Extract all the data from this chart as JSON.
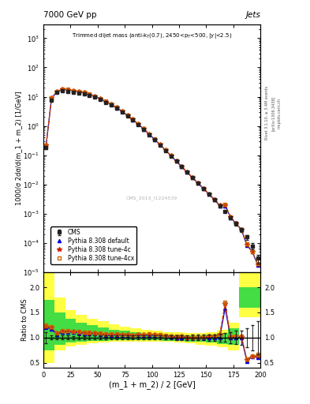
{
  "title_main": "7000 GeV pp",
  "title_right": "Jets",
  "plot_title_line1": "Trimmed dijet mass (anti-k_{T}(0.7), 2450<p_{T}<500, |y|<2.5)",
  "xlabel": "(m_1 + m_2) / 2 [GeV]",
  "ylabel_main": "1000/σ 2dσ/d(m_1 + m_2) [1/GeV]",
  "ylabel_ratio": "Ratio to CMS",
  "watermark": "CMS_2013_I1224539",
  "rivet_label": "Rivet 3.1.10, ≥ 3.4M events",
  "arxiv_label": "[arXiv:1306.3438]",
  "mcplots_label": "mcplots.cern.ch",
  "cms_x": [
    2.5,
    7.5,
    12.5,
    17.5,
    22.5,
    27.5,
    32.5,
    37.5,
    42.5,
    47.5,
    52.5,
    57.5,
    62.5,
    67.5,
    72.5,
    77.5,
    82.5,
    87.5,
    92.5,
    97.5,
    102.5,
    107.5,
    112.5,
    117.5,
    122.5,
    127.5,
    132.5,
    137.5,
    142.5,
    147.5,
    152.5,
    157.5,
    162.5,
    167.5,
    172.5,
    177.5,
    182.5,
    187.5,
    192.5,
    197.5
  ],
  "cms_y": [
    0.18,
    7.5,
    14.0,
    16.0,
    15.5,
    14.5,
    13.5,
    12.5,
    11.0,
    9.5,
    8.0,
    6.5,
    5.2,
    4.0,
    3.0,
    2.2,
    1.6,
    1.1,
    0.75,
    0.5,
    0.33,
    0.22,
    0.145,
    0.095,
    0.062,
    0.04,
    0.026,
    0.017,
    0.011,
    0.0072,
    0.0047,
    0.003,
    0.0019,
    0.0012,
    0.00075,
    0.00046,
    0.00028,
    0.00016,
    8e-05,
    3e-05
  ],
  "cms_yerr": [
    0.02,
    0.3,
    0.5,
    0.6,
    0.6,
    0.5,
    0.5,
    0.4,
    0.4,
    0.35,
    0.3,
    0.25,
    0.2,
    0.15,
    0.12,
    0.09,
    0.06,
    0.04,
    0.03,
    0.02,
    0.013,
    0.009,
    0.006,
    0.004,
    0.003,
    0.002,
    0.0013,
    0.0009,
    0.0006,
    0.0004,
    0.0003,
    0.0002,
    0.00015,
    0.0001,
    8e-05,
    6e-05,
    4e-05,
    3e-05,
    2e-05,
    1e-05
  ],
  "pythia_default_y": [
    0.215,
    8.8,
    14.8,
    17.8,
    17.2,
    16.0,
    14.8,
    13.5,
    11.8,
    10.2,
    8.5,
    6.8,
    5.4,
    4.2,
    3.15,
    2.3,
    1.65,
    1.15,
    0.78,
    0.52,
    0.345,
    0.228,
    0.149,
    0.096,
    0.062,
    0.04,
    0.026,
    0.017,
    0.011,
    0.0072,
    0.0047,
    0.003,
    0.0019,
    0.0019,
    0.00075,
    0.00046,
    0.00028,
    8.5e-05,
    5e-05,
    1.8e-05
  ],
  "pythia_tune4c_y": [
    0.22,
    9.0,
    15.2,
    18.0,
    17.5,
    16.2,
    15.0,
    13.7,
    12.0,
    10.3,
    8.6,
    6.9,
    5.5,
    4.25,
    3.18,
    2.32,
    1.67,
    1.16,
    0.79,
    0.53,
    0.35,
    0.23,
    0.15,
    0.097,
    0.063,
    0.041,
    0.026,
    0.017,
    0.011,
    0.0073,
    0.0048,
    0.0031,
    0.002,
    0.002,
    0.00076,
    0.00047,
    0.000285,
    9e-05,
    5e-05,
    1.9e-05
  ],
  "pythia_tune4cx_y": [
    0.225,
    9.1,
    15.3,
    18.1,
    17.6,
    16.3,
    15.1,
    13.8,
    12.1,
    10.4,
    8.7,
    7.0,
    5.55,
    4.28,
    3.2,
    2.34,
    1.68,
    1.17,
    0.795,
    0.535,
    0.352,
    0.232,
    0.151,
    0.098,
    0.0635,
    0.0412,
    0.0265,
    0.0172,
    0.0111,
    0.0073,
    0.0048,
    0.0031,
    0.002,
    0.00205,
    0.00077,
    0.000475,
    0.000288,
    9.2e-05,
    5.1e-05,
    2e-05
  ],
  "band_x_edges": [
    0,
    10,
    20,
    30,
    40,
    50,
    60,
    70,
    80,
    90,
    100,
    110,
    120,
    130,
    140,
    150,
    160,
    170,
    180,
    200
  ],
  "band_yellow_lo": [
    0.5,
    0.75,
    0.82,
    0.86,
    0.88,
    0.9,
    0.91,
    0.92,
    0.92,
    0.92,
    0.92,
    0.91,
    0.9,
    0.88,
    0.86,
    0.84,
    0.8,
    0.75,
    1.4,
    1.6
  ],
  "band_yellow_hi": [
    2.3,
    1.8,
    1.55,
    1.45,
    1.38,
    1.32,
    1.27,
    1.22,
    1.18,
    1.15,
    1.13,
    1.11,
    1.1,
    1.09,
    1.09,
    1.1,
    1.15,
    1.3,
    2.3,
    2.3
  ],
  "band_green_lo": [
    0.75,
    0.86,
    0.9,
    0.92,
    0.93,
    0.94,
    0.95,
    0.95,
    0.95,
    0.95,
    0.95,
    0.94,
    0.93,
    0.92,
    0.91,
    0.9,
    0.87,
    0.85,
    1.6,
    1.75
  ],
  "band_green_hi": [
    1.75,
    1.5,
    1.37,
    1.3,
    1.24,
    1.2,
    1.16,
    1.13,
    1.1,
    1.08,
    1.07,
    1.06,
    1.05,
    1.05,
    1.05,
    1.06,
    1.09,
    1.18,
    2.0,
    2.0
  ],
  "color_cms": "#222222",
  "color_default": "#0000dd",
  "color_tune4c": "#cc2200",
  "color_tune4cx": "#cc6600",
  "color_yellow": "#ffff44",
  "color_green": "#44dd44",
  "xlim": [
    0,
    200
  ],
  "ylim_main": [
    1e-05,
    3000.0
  ],
  "ylim_ratio": [
    0.4,
    2.3
  ],
  "ratio_yticks": [
    0.5,
    1.0,
    1.5,
    2.0
  ],
  "legend_labels": [
    "CMS",
    "Pythia 8.308 default",
    "Pythia 8.308 tune-4c",
    "Pythia 8.308 tune-4cx"
  ]
}
